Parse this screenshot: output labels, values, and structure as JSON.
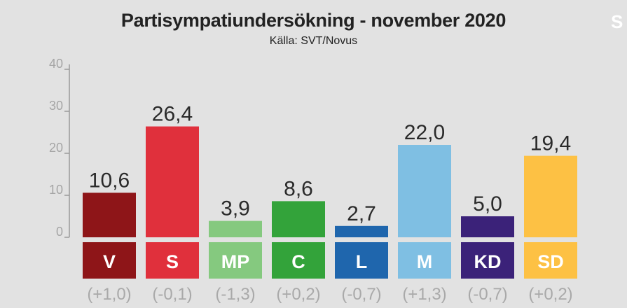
{
  "title": "Partisympatiundersökning - november 2020",
  "subtitle": "Källa: SVT/Novus",
  "logo_text": "S",
  "chart_data": {
    "type": "bar",
    "title": "Partisympatiundersökning - november 2020",
    "subtitle": "Källa: SVT/Novus",
    "categories": [
      "V",
      "S",
      "MP",
      "C",
      "L",
      "M",
      "KD",
      "SD"
    ],
    "values": [
      10.6,
      26.4,
      3.9,
      8.6,
      2.7,
      22.0,
      5.0,
      19.4
    ],
    "value_labels": [
      "10,6",
      "26,4",
      "3,9",
      "8,6",
      "2,7",
      "22,0",
      "5,0",
      "19,4"
    ],
    "changes": [
      "(+1,0)",
      "(-0,1)",
      "(-1,3)",
      "(+0,2)",
      "(-0,7)",
      "(+1,3)",
      "(-0,7)",
      "(+0,2)"
    ],
    "colors": [
      "#8e1518",
      "#e0303c",
      "#85c97f",
      "#33a33a",
      "#1f66ad",
      "#7fbfe3",
      "#3b2279",
      "#fdc144"
    ],
    "ylim": [
      0,
      40
    ],
    "yticks": [
      "0",
      "10",
      "20",
      "30",
      "40"
    ],
    "grid": false,
    "legend": "none"
  }
}
